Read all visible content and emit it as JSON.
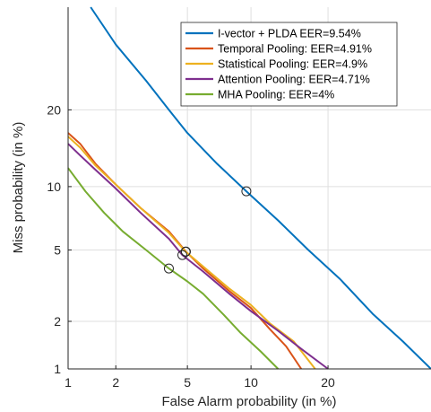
{
  "chart_data": {
    "type": "line",
    "title": "",
    "xlabel": "False Alarm probability (in %)",
    "ylabel": "Miss probability (in %)",
    "x_scale": "probit",
    "y_scale": "probit",
    "xlim": [
      1,
      40
    ],
    "ylim": [
      1,
      40
    ],
    "x_ticks": [
      1,
      2,
      5,
      10,
      20
    ],
    "x_tick_labels": [
      "1",
      "2",
      "5",
      "10",
      "20"
    ],
    "y_ticks": [
      1,
      2,
      5,
      10,
      20
    ],
    "y_tick_labels": [
      "1",
      "2",
      "5",
      "10",
      "20"
    ],
    "grid": true,
    "legend_position": "top-right",
    "eer_marker": "circle",
    "series": [
      {
        "name": "I-vector + PLDA EER=9.54%",
        "color": "#0072BD",
        "eer": 9.54,
        "points": [
          [
            1.4,
            40
          ],
          [
            2,
            32
          ],
          [
            3,
            25
          ],
          [
            4,
            20
          ],
          [
            5,
            16.5
          ],
          [
            7,
            12.5
          ],
          [
            9.54,
            9.54
          ],
          [
            13,
            7
          ],
          [
            17,
            5
          ],
          [
            22,
            3.5
          ],
          [
            28,
            2.2
          ],
          [
            34,
            1.5
          ],
          [
            40,
            1.0
          ]
        ]
      },
      {
        "name": "Temporal Pooling: EER=4.91%",
        "color": "#D95319",
        "eer": 4.91,
        "points": [
          [
            1,
            16.5
          ],
          [
            1.2,
            15
          ],
          [
            1.5,
            12.5
          ],
          [
            2,
            10.2
          ],
          [
            2.8,
            8
          ],
          [
            4,
            6.2
          ],
          [
            4.91,
            4.91
          ],
          [
            6,
            4.0
          ],
          [
            8,
            3.0
          ],
          [
            10,
            2.4
          ],
          [
            12,
            1.8
          ],
          [
            14,
            1.4
          ],
          [
            16,
            1.0
          ]
        ]
      },
      {
        "name": "Statistical Pooling: EER=4.9%",
        "color": "#EDB120",
        "eer": 4.9,
        "points": [
          [
            1,
            16
          ],
          [
            1.2,
            14.5
          ],
          [
            1.5,
            12.3
          ],
          [
            2,
            10.2
          ],
          [
            2.8,
            8
          ],
          [
            4,
            6.1
          ],
          [
            4.9,
            4.9
          ],
          [
            6,
            4.1
          ],
          [
            8,
            3.1
          ],
          [
            10,
            2.5
          ],
          [
            12,
            1.95
          ],
          [
            15,
            1.5
          ],
          [
            18,
            1.0
          ]
        ]
      },
      {
        "name": "Attention Pooling: EER=4.71%",
        "color": "#7E2F8E",
        "eer": 4.71,
        "points": [
          [
            1,
            15
          ],
          [
            1.2,
            13.5
          ],
          [
            1.5,
            11.8
          ],
          [
            2,
            9.8
          ],
          [
            2.8,
            7.6
          ],
          [
            4,
            5.7
          ],
          [
            4.71,
            4.71
          ],
          [
            6,
            3.85
          ],
          [
            8,
            2.9
          ],
          [
            10,
            2.3
          ],
          [
            13,
            1.75
          ],
          [
            16,
            1.35
          ],
          [
            20,
            1.0
          ]
        ]
      },
      {
        "name": "MHA Pooling: EER=4%",
        "color": "#77AC30",
        "eer": 4,
        "points": [
          [
            1,
            12
          ],
          [
            1.3,
            9.5
          ],
          [
            1.7,
            7.6
          ],
          [
            2.2,
            6.2
          ],
          [
            3,
            5
          ],
          [
            4,
            4
          ],
          [
            5,
            3.4
          ],
          [
            6,
            2.9
          ],
          [
            7.5,
            2.2
          ],
          [
            9,
            1.7
          ],
          [
            11,
            1.3
          ],
          [
            13,
            1.0
          ]
        ]
      }
    ]
  }
}
